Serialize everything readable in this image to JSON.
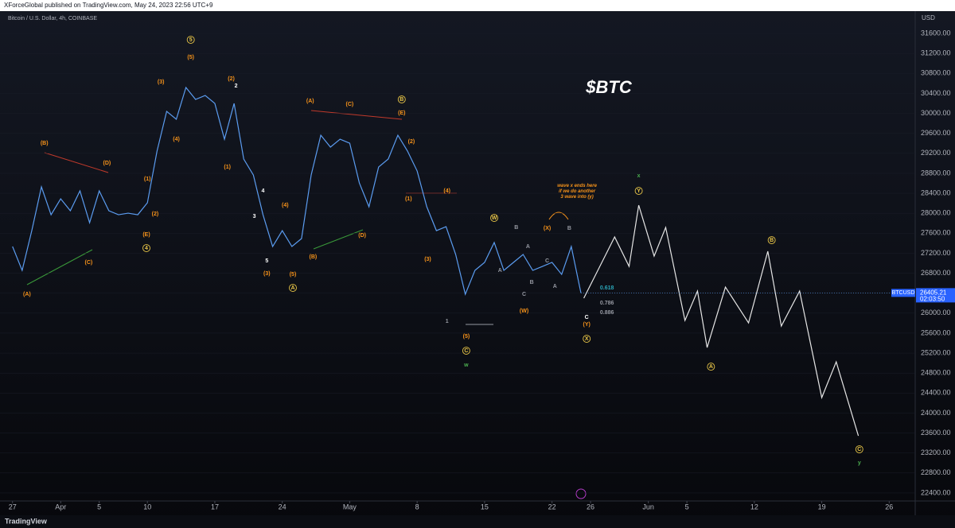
{
  "header": {
    "publisher": "XForceGlobal published on TradingView.com, May 24, 2023 22:56 UTC+9",
    "symbol": "Bitcoin / U.S. Dollar, 4h, COINBASE",
    "currency": "USD",
    "headline": "$BTC",
    "countdown": "02:03:50",
    "brand": "TradingView"
  },
  "chart_data": {
    "type": "line",
    "xlim": [
      -1.3,
      93.7
    ],
    "ylim": [
      22240,
      32110
    ],
    "xticks": [
      {
        "value": 0,
        "label": "27"
      },
      {
        "value": 5,
        "label": "Apr"
      },
      {
        "value": 9,
        "label": "5"
      },
      {
        "value": 14,
        "label": "10"
      },
      {
        "value": 21,
        "label": "17"
      },
      {
        "value": 28,
        "label": "24"
      },
      {
        "value": 35,
        "label": "May"
      },
      {
        "value": 42,
        "label": "8"
      },
      {
        "value": 49,
        "label": "15"
      },
      {
        "value": 56,
        "label": "22"
      },
      {
        "value": 60,
        "label": "26"
      },
      {
        "value": 66,
        "label": "Jun"
      },
      {
        "value": 70,
        "label": "5"
      },
      {
        "value": 77,
        "label": "12"
      },
      {
        "value": 84,
        "label": "19"
      },
      {
        "value": 91,
        "label": "26"
      }
    ],
    "yticks": [
      {
        "value": 22400,
        "label": "22400.00"
      },
      {
        "value": 22800,
        "label": "22800.00"
      },
      {
        "value": 23200,
        "label": "23200.00"
      },
      {
        "value": 23600,
        "label": "23600.00"
      },
      {
        "value": 24000,
        "label": "24000.00"
      },
      {
        "value": 24400,
        "label": "24400.00"
      },
      {
        "value": 24800,
        "label": "24800.00"
      },
      {
        "value": 25200,
        "label": "25200.00"
      },
      {
        "value": 25600,
        "label": "25600.00"
      },
      {
        "value": 26000,
        "label": "26000.00"
      },
      {
        "value": 26400,
        "label": "26400.00"
      },
      {
        "value": 26800,
        "label": "26800.00"
      },
      {
        "value": 27200,
        "label": "27200.00"
      },
      {
        "value": 27600,
        "label": "27600.00"
      },
      {
        "value": 28000,
        "label": "28000.00"
      },
      {
        "value": 28400,
        "label": "28400.00"
      },
      {
        "value": 28800,
        "label": "28800.00"
      },
      {
        "value": 29200,
        "label": "29200.00"
      },
      {
        "value": 29600,
        "label": "29600.00"
      },
      {
        "value": 30000,
        "label": "30000.00"
      },
      {
        "value": 30400,
        "label": "30400.00"
      },
      {
        "value": 30800,
        "label": "30800.00"
      },
      {
        "value": 31200,
        "label": "31200.00"
      },
      {
        "value": 31600,
        "label": "31600.00"
      }
    ],
    "series": [
      {
        "name": "BTCUSD",
        "color": "#5b9cf0",
        "x": [
          0,
          1,
          2,
          3,
          4,
          5,
          6,
          7,
          8,
          9,
          10,
          11,
          12,
          13,
          14,
          15,
          16,
          17,
          18,
          19,
          20,
          21,
          22,
          23,
          24,
          25,
          26,
          27,
          28,
          29,
          30,
          31,
          32,
          33,
          34,
          35,
          36,
          37,
          38,
          39,
          40,
          41,
          42,
          43,
          44,
          45,
          46,
          47,
          48,
          49,
          50,
          51,
          52,
          53,
          54,
          55,
          56,
          57,
          58,
          59
        ],
        "values": [
          27334,
          26856,
          27652,
          28528,
          27970,
          28289,
          28050,
          28448,
          27811,
          28448,
          28050,
          27970,
          28002,
          27970,
          28209,
          29244,
          30040,
          29881,
          30518,
          30279,
          30358,
          30199,
          29483,
          30199,
          29085,
          28766,
          27970,
          27334,
          27652,
          27334,
          27493,
          28766,
          29562,
          29324,
          29483,
          29403,
          28607,
          28130,
          28925,
          29085,
          29562,
          29244,
          28846,
          28130,
          27652,
          27732,
          27175,
          26378,
          26856,
          27016,
          27414,
          26856,
          27016,
          27175,
          26856,
          26936,
          27016,
          26776,
          27334,
          26405.21
        ]
      },
      {
        "color": "#e6e6e6",
        "x": [
          59.3,
          62.5,
          64.0,
          65.0,
          66.6,
          67.8,
          69.8,
          71.1,
          72.1,
          74.0,
          76.4,
          78.4,
          79.8,
          81.7,
          84.0,
          85.5,
          87.8
        ],
        "values": [
          26299,
          27525,
          26935,
          28161,
          27142,
          27716,
          25853,
          26442,
          25312,
          26522,
          25805,
          27238,
          25742,
          26442,
          24309,
          25025,
          23545
        ]
      }
    ],
    "annotations": [
      {
        "text": "(A)",
        "x": 1.5,
        "y": 26378,
        "color": "#f7931a",
        "circled": false
      },
      {
        "text": "(B)",
        "x": 3.3,
        "y": 29403,
        "color": "#f7931a",
        "circled": false
      },
      {
        "text": "(C)",
        "x": 7.9,
        "y": 27016,
        "color": "#f7931a",
        "circled": false
      },
      {
        "text": "(D)",
        "x": 9.8,
        "y": 29005,
        "color": "#f7931a",
        "circled": false
      },
      {
        "text": "(E)",
        "x": 13.9,
        "y": 27572,
        "color": "#f7931a",
        "circled": false
      },
      {
        "text": "4",
        "x": 13.9,
        "y": 27302,
        "color": "#e8c547",
        "circled": true
      },
      {
        "text": "(1)",
        "x": 14.0,
        "y": 28687,
        "color": "#f7931a",
        "circled": false
      },
      {
        "text": "(2)",
        "x": 14.8,
        "y": 27986,
        "color": "#f7931a",
        "circled": false
      },
      {
        "text": "(3)",
        "x": 15.4,
        "y": 30629,
        "color": "#f7931a",
        "circled": false
      },
      {
        "text": "(4)",
        "x": 17.0,
        "y": 29483,
        "color": "#f7931a",
        "circled": false
      },
      {
        "text": "(5)",
        "x": 18.5,
        "y": 31122,
        "color": "#f7931a",
        "circled": false
      },
      {
        "text": "5",
        "x": 18.5,
        "y": 31473,
        "color": "#e8c547",
        "circled": true
      },
      {
        "text": "(1)",
        "x": 22.3,
        "y": 28925,
        "color": "#f7931a",
        "circled": false
      },
      {
        "text": "(2)",
        "x": 22.7,
        "y": 30693,
        "color": "#f7931a",
        "circled": false
      },
      {
        "text": "2",
        "x": 23.2,
        "y": 30549,
        "color": "#ffffff",
        "circled": false
      },
      {
        "text": "3",
        "x": 25.1,
        "y": 27938,
        "color": "#ffffff",
        "circled": false
      },
      {
        "text": "4",
        "x": 26.0,
        "y": 28448,
        "color": "#ffffff",
        "circled": false
      },
      {
        "text": "5",
        "x": 26.4,
        "y": 27047,
        "color": "#ffffff",
        "circled": false
      },
      {
        "text": "(3)",
        "x": 26.4,
        "y": 26792,
        "color": "#f7931a",
        "circled": false
      },
      {
        "text": "(4)",
        "x": 28.3,
        "y": 28161,
        "color": "#f7931a",
        "circled": false
      },
      {
        "text": "(5)",
        "x": 29.1,
        "y": 26776,
        "color": "#f7931a",
        "circled": false
      },
      {
        "text": "A",
        "x": 29.1,
        "y": 26506,
        "color": "#e8c547",
        "circled": true
      },
      {
        "text": "(B)",
        "x": 31.2,
        "y": 27126,
        "color": "#f7931a",
        "circled": false
      },
      {
        "text": "(A)",
        "x": 30.9,
        "y": 30247,
        "color": "#f7931a",
        "circled": false
      },
      {
        "text": "(C)",
        "x": 35.0,
        "y": 30183,
        "color": "#f7931a",
        "circled": false
      },
      {
        "text": "(D)",
        "x": 36.3,
        "y": 27557,
        "color": "#f7931a",
        "circled": false
      },
      {
        "text": "B",
        "x": 40.4,
        "y": 30279,
        "color": "#e8c547",
        "circled": true
      },
      {
        "text": "(E)",
        "x": 40.4,
        "y": 30008,
        "color": "#f7931a",
        "circled": false
      },
      {
        "text": "(2)",
        "x": 41.4,
        "y": 29435,
        "color": "#f7931a",
        "circled": false
      },
      {
        "text": "(1)",
        "x": 41.1,
        "y": 28289,
        "color": "#f7931a",
        "circled": false
      },
      {
        "text": "(4)",
        "x": 45.1,
        "y": 28448,
        "color": "#f7931a",
        "circled": false
      },
      {
        "text": "(3)",
        "x": 43.1,
        "y": 27079,
        "color": "#f7931a",
        "circled": false
      },
      {
        "text": "1",
        "x": 45.1,
        "y": 25837,
        "color": "#9598a1",
        "circled": false
      },
      {
        "text": "(5)",
        "x": 47.1,
        "y": 25535,
        "color": "#f7931a",
        "circled": false
      },
      {
        "text": "C",
        "x": 47.1,
        "y": 25248,
        "color": "#e8c547",
        "circled": true
      },
      {
        "text": "w",
        "x": 47.1,
        "y": 24961,
        "color": "#4caf50",
        "circled": false
      },
      {
        "text": "W",
        "x": 50.0,
        "y": 27907,
        "color": "#e8c547",
        "circled": true
      },
      {
        "text": "A",
        "x": 50.6,
        "y": 26856,
        "color": "#9598a1",
        "circled": false
      },
      {
        "text": "B",
        "x": 52.3,
        "y": 27716,
        "color": "#9598a1",
        "circled": false
      },
      {
        "text": "C",
        "x": 53.1,
        "y": 26379,
        "color": "#9598a1",
        "circled": false
      },
      {
        "text": "(W)",
        "x": 53.1,
        "y": 26044,
        "color": "#f7931a",
        "circled": false
      },
      {
        "text": "A",
        "x": 53.5,
        "y": 27334,
        "color": "#9598a1",
        "circled": false
      },
      {
        "text": "B",
        "x": 53.9,
        "y": 26617,
        "color": "#9598a1",
        "circled": false
      },
      {
        "text": "C",
        "x": 55.5,
        "y": 27047,
        "color": "#9598a1",
        "circled": false
      },
      {
        "text": "(X)",
        "x": 55.5,
        "y": 27700,
        "color": "#f7931a",
        "circled": false
      },
      {
        "text": "A",
        "x": 56.3,
        "y": 26538,
        "color": "#9598a1",
        "circled": false
      },
      {
        "text": "B",
        "x": 57.8,
        "y": 27700,
        "color": "#9598a1",
        "circled": false
      },
      {
        "text": "C",
        "x": 59.6,
        "y": 25916,
        "color": "#ffffff",
        "circled": false
      },
      {
        "text": "(Y)",
        "x": 59.6,
        "y": 25773,
        "color": "#f7931a",
        "circled": false
      },
      {
        "text": "X",
        "x": 59.6,
        "y": 25487,
        "color": "#e8c547",
        "circled": true
      },
      {
        "text": "x",
        "x": 65.0,
        "y": 28750,
        "color": "#4caf50",
        "circled": false
      },
      {
        "text": "Y",
        "x": 65.0,
        "y": 28448,
        "color": "#e8c547",
        "circled": true
      },
      {
        "text": "A",
        "x": 72.5,
        "y": 24929,
        "color": "#e8c547",
        "circled": true
      },
      {
        "text": "B",
        "x": 78.8,
        "y": 27461,
        "color": "#e8c547",
        "circled": true
      },
      {
        "text": "C",
        "x": 87.9,
        "y": 23274,
        "color": "#e8c547",
        "circled": true
      },
      {
        "text": "y",
        "x": 87.9,
        "y": 23003,
        "color": "#4caf50",
        "circled": false
      },
      {
        "text": "0.618",
        "x": 61.7,
        "y": 26506,
        "color": "#2aa5b8",
        "circled": false
      },
      {
        "text": "0.786",
        "x": 61.7,
        "y": 26203,
        "color": "#9598a1",
        "circled": false
      },
      {
        "text": "0.886",
        "x": 61.7,
        "y": 26012,
        "color": "#9598a1",
        "circled": false
      }
    ],
    "note": {
      "lines": [
        "wave x ends here",
        "if we do another",
        "3 wave into (y)"
      ],
      "x": 58.6,
      "y": 28550,
      "color": "#f7931a"
    }
  }
}
